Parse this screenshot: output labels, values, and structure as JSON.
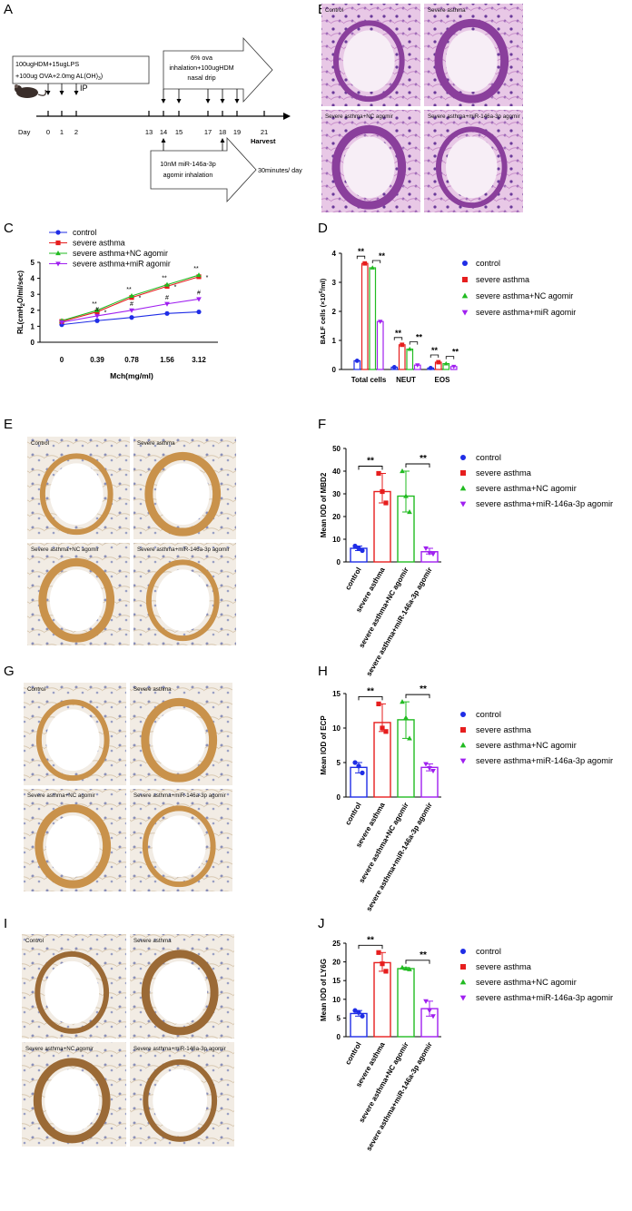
{
  "panels": {
    "A": "A",
    "B": "B",
    "C": "C",
    "D": "D",
    "E": "E",
    "F": "F",
    "G": "G",
    "H": "H",
    "I": "I",
    "J": "J"
  },
  "timeline": {
    "protocol_line1": "100ugHDM+15ugLPS",
    "protocol_line2": "+100ug OVA+2.0mg AL(OH)",
    "protocol_sub": "3",
    "ip": "IP",
    "inhalation_line1": "6% ova",
    "inhalation_line2": "inhalation+100ugHDM",
    "inhalation_line3": "nasal drip",
    "agomir_line1": "10nM miR-146a-3p",
    "agomir_line2": "agomir inhalation",
    "agomir_duration": "30minutes/ day",
    "day_label": "Day",
    "days": [
      "0",
      "1",
      "2",
      "13",
      "14",
      "15",
      "17",
      "18",
      "19",
      "21"
    ],
    "harvest": "Harvest"
  },
  "histology_B": [
    "Control",
    "Severe asthma",
    "Severe asthma+NC agomir",
    "Severe asthma+miR-146a-3p agomir"
  ],
  "histology_E": [
    "Control",
    "Severe asthma",
    "Severe asthma+NC agomir",
    "Severe asthma+miR-146a-3p agomir"
  ],
  "histology_G": [
    "Control",
    "Severe asthma",
    "Severe asthma+NC agomir",
    "Severe asthma+miR-146a-3p agomir"
  ],
  "histology_I": [
    "Control",
    "Severe asthma",
    "Severe asthma+NC agomir",
    "Severe asthma+miR-146a-3p agomir"
  ],
  "colors": {
    "control": "#1f2de6",
    "asthma": "#e61e1e",
    "nc": "#22bb22",
    "mir": "#a020f0"
  },
  "chart_data": [
    {
      "panel": "C",
      "type": "line",
      "x": [
        "0",
        "0.39",
        "0.78",
        "1.56",
        "3.12"
      ],
      "xlabel": "Mch(mg/ml)",
      "ylabel": "RL(cmH",
      "ylabel_sub": "2",
      "ylabel_end": "O/ml/sec)",
      "ylim": [
        0,
        5
      ],
      "yticks": [
        "0",
        "1",
        "2",
        "3",
        "4",
        "5"
      ],
      "series": [
        {
          "name": "control",
          "values": [
            1.1,
            1.35,
            1.55,
            1.8,
            1.9
          ]
        },
        {
          "name": "severe asthma",
          "values": [
            1.3,
            1.9,
            2.8,
            3.5,
            4.1
          ]
        },
        {
          "name": "severe asthma+NC agomir",
          "values": [
            1.35,
            2.0,
            2.9,
            3.6,
            4.2
          ]
        },
        {
          "name": "severe asthma+miR agomir",
          "values": [
            1.25,
            1.65,
            2.0,
            2.4,
            2.7
          ]
        }
      ],
      "annotations": {
        "ss": [
          "**",
          "**",
          "**",
          "**"
        ],
        "s": [
          "*",
          "*",
          "*",
          "*"
        ],
        "hash": [
          "#",
          "#",
          "#",
          "#"
        ]
      },
      "legend_placement": "top"
    },
    {
      "panel": "D",
      "type": "bar",
      "categories": [
        "Total cells",
        "NEUT",
        "EOS"
      ],
      "ylabel": "BALF cells (",
      "ylabel_mid": "×10",
      "ylabel_sup": "6",
      "ylabel_end": "/ml)",
      "ylim": [
        0,
        4
      ],
      "yticks": [
        "0",
        "1",
        "2",
        "3",
        "4"
      ],
      "series": [
        {
          "name": "control",
          "values": [
            0.3,
            0.08,
            0.05
          ]
        },
        {
          "name": "severe asthma",
          "values": [
            3.65,
            0.85,
            0.25
          ]
        },
        {
          "name": "severe asthma+NC agomir",
          "values": [
            3.5,
            0.7,
            0.2
          ]
        },
        {
          "name": "severe asthma+miR agomir",
          "values": [
            1.65,
            0.15,
            0.1
          ]
        }
      ],
      "significance": [
        "**",
        "**",
        "**",
        "**",
        "**",
        "**"
      ],
      "legend_placement": "right"
    },
    {
      "panel": "F",
      "type": "bar",
      "categories": [
        "control",
        "severe asthma",
        "severe asthma+NC agomir",
        "severe asthma+miR-146a-3p agomir"
      ],
      "ylabel": "Mean IOD of MBD2",
      "ylim": [
        0,
        50
      ],
      "yticks": [
        "0",
        "10",
        "20",
        "30",
        "40",
        "50"
      ],
      "values": [
        6,
        31,
        29,
        4.5
      ],
      "points": [
        [
          7,
          6,
          5
        ],
        [
          39,
          31,
          26
        ],
        [
          40,
          29,
          22
        ],
        [
          6,
          4,
          3.5
        ]
      ],
      "significance": [
        "**",
        "**"
      ],
      "legend_placement": "right"
    },
    {
      "panel": "H",
      "type": "bar",
      "categories": [
        "control",
        "severe asthma",
        "severe asthma+NC agomir",
        "severe asthma+miR-146a-3p agomir"
      ],
      "ylabel": "Mean IOD of ECP",
      "ylim": [
        0,
        15
      ],
      "yticks": [
        "0",
        "5",
        "10",
        "15"
      ],
      "values": [
        4.3,
        10.8,
        11.2,
        4.3
      ],
      "points": [
        [
          5,
          4.5,
          3.5
        ],
        [
          13.5,
          10,
          9.5
        ],
        [
          13.8,
          11.5,
          8.5
        ],
        [
          4.8,
          4.2,
          3.8
        ]
      ],
      "significance": [
        "**",
        "**"
      ],
      "legend_placement": "right"
    },
    {
      "panel": "J",
      "type": "bar",
      "categories": [
        "control",
        "severe asthma",
        "severe asthma+NC agomir",
        "severe asthma+miR-146a-3p agomir"
      ],
      "ylabel": "Mean IOD of LY6G",
      "ylim": [
        0,
        25
      ],
      "yticks": [
        "0",
        "5",
        "10",
        "15",
        "20",
        "25"
      ],
      "values": [
        6.2,
        19.8,
        18.2,
        7.5
      ],
      "points": [
        [
          7,
          6.5,
          5.5
        ],
        [
          22.5,
          19.5,
          17.5
        ],
        [
          18.5,
          18.2,
          18.0
        ],
        [
          9.5,
          7,
          5.5
        ]
      ],
      "significance": [
        "**",
        "**"
      ],
      "legend_placement": "right"
    }
  ]
}
